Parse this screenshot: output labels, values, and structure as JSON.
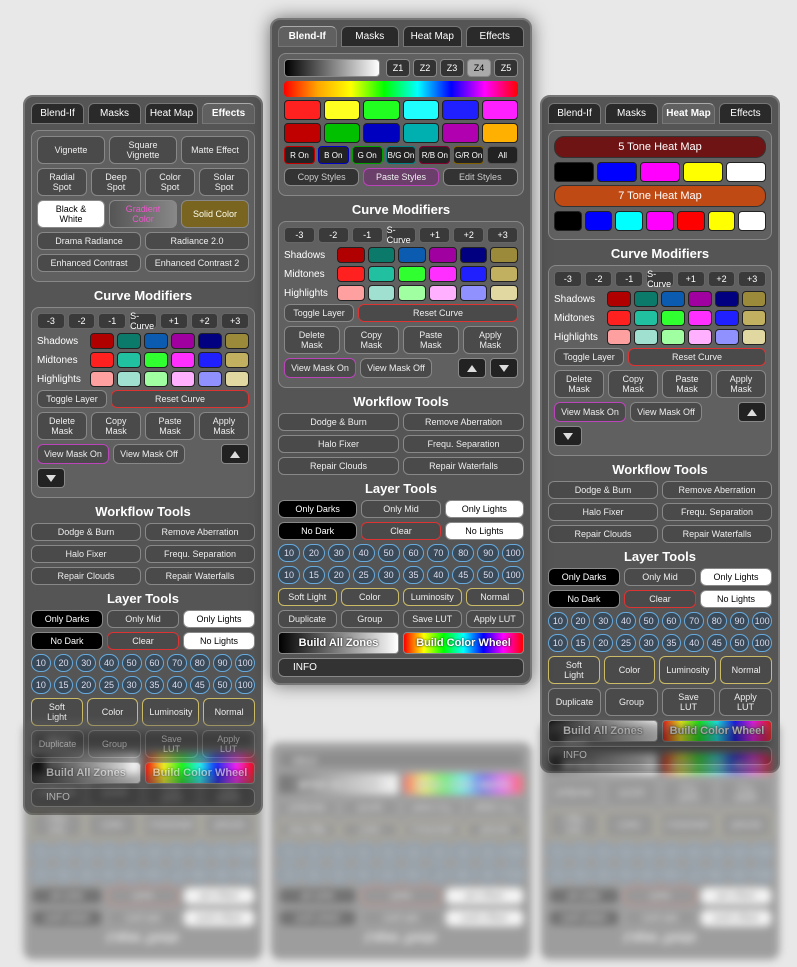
{
  "tabs": {
    "blend_if": "Blend-If",
    "masks": "Masks",
    "heat_map": "Heat Map",
    "effects": "Effects"
  },
  "effects": {
    "vignette": "Vignette",
    "sq_vignette": "Square Vignette",
    "matte": "Matte Effect",
    "radial": "Radial Spot",
    "deep": "Deep Spot",
    "color_spot": "Color Spot",
    "solar": "Solar Spot",
    "bw": "Black & White",
    "gradient": "Gradient Color",
    "solid": "Solid Color",
    "drama": "Drama Radiance",
    "radiance2": "Radiance 2.0",
    "enh_contrast": "Enhanced Contrast",
    "enh_contrast2": "Enhanced Contrast 2"
  },
  "curve": {
    "title": "Curve Modifiers",
    "steps": [
      "-3",
      "-2",
      "-1",
      "S-Curve",
      "+1",
      "+2",
      "+3"
    ],
    "shadows": "Shadows",
    "midtones": "Midtones",
    "highlights": "Highlights",
    "row_colors": {
      "shadows": [
        "#b00000",
        "#0b7a6a",
        "#0b5bb0",
        "#a000a0",
        "#000080",
        "#9a8a3a"
      ],
      "midtones": [
        "#ff2020",
        "#20c0a0",
        "#30ff30",
        "#ff30ff",
        "#2020ff",
        "#c0b060"
      ],
      "highlights": [
        "#ffa0a0",
        "#a0e0d0",
        "#a0ffa0",
        "#ffb0ff",
        "#9090ff",
        "#e0d8a0"
      ]
    },
    "toggle": "Toggle Layer",
    "reset": "Reset Curve",
    "del_mask": "Delete Mask",
    "copy_mask": "Copy Mask",
    "paste_mask": "Paste Mask",
    "apply_mask": "Apply Mask",
    "view_on": "View Mask On",
    "view_off": "View Mask Off"
  },
  "workflow": {
    "title": "Workflow Tools",
    "dodge": "Dodge & Burn",
    "aberr": "Remove Aberration",
    "halo": "Halo Fixer",
    "freq": "Frequ. Separation",
    "clouds": "Repair Clouds",
    "water": "Repair Waterfalls"
  },
  "layer": {
    "title": "Layer Tools",
    "only_darks": "Only Darks",
    "only_mid": "Only Mid",
    "only_lights": "Only Lights",
    "no_dark": "No Dark",
    "clear": "Clear",
    "no_lights": "No Lights",
    "nums1": [
      "10",
      "20",
      "30",
      "40",
      "50",
      "60",
      "70",
      "80",
      "90",
      "100"
    ],
    "nums2": [
      "10",
      "15",
      "20",
      "25",
      "30",
      "35",
      "40",
      "45",
      "50",
      "100"
    ],
    "soft": "Soft Light",
    "color": "Color",
    "lum": "Luminosity",
    "normal": "Normal",
    "dup": "Duplicate",
    "group": "Group",
    "save_lut": "Save LUT",
    "apply_lut": "Apply LUT",
    "build_zones": "Build All Zones",
    "build_wheel": "Build Color Wheel",
    "info": "INFO"
  },
  "blendif": {
    "zones": [
      "Z1",
      "Z2",
      "Z3",
      "Z4",
      "Z5"
    ],
    "zone_sel": 3,
    "row1": [
      "#ff2020",
      "#ffff20",
      "#20ff20",
      "#20ffff",
      "#2020ff",
      "#ff20ff"
    ],
    "row2": [
      "#c00000",
      "#00c000",
      "#0000c0",
      "#00b0b0",
      "#b000b0",
      "#ffb000"
    ],
    "onoff": [
      "R On",
      "B On",
      "G On",
      "B/G On",
      "R/B On",
      "G/R On",
      "All"
    ],
    "onoff_colors": [
      "#c00000",
      "#0000c0",
      "#00a000",
      "#008080",
      "#800030",
      "#806000",
      "#555"
    ],
    "copy": "Copy Styles",
    "paste": "Paste Styles",
    "edit": "Edit Styles"
  },
  "heatmap": {
    "five": "5 Tone Heat Map",
    "five_color": "#6e1414",
    "seven": "7 Tone Heat Map",
    "seven_color": "#c04a14",
    "five_swatches": [
      "#000000",
      "#0000ff",
      "#ff00ff",
      "#ffff00",
      "#ffffff"
    ],
    "seven_swatches": [
      "#000000",
      "#0000ff",
      "#00ffff",
      "#ff00ff",
      "#ff0000",
      "#ffff00",
      "#ffffff"
    ]
  }
}
